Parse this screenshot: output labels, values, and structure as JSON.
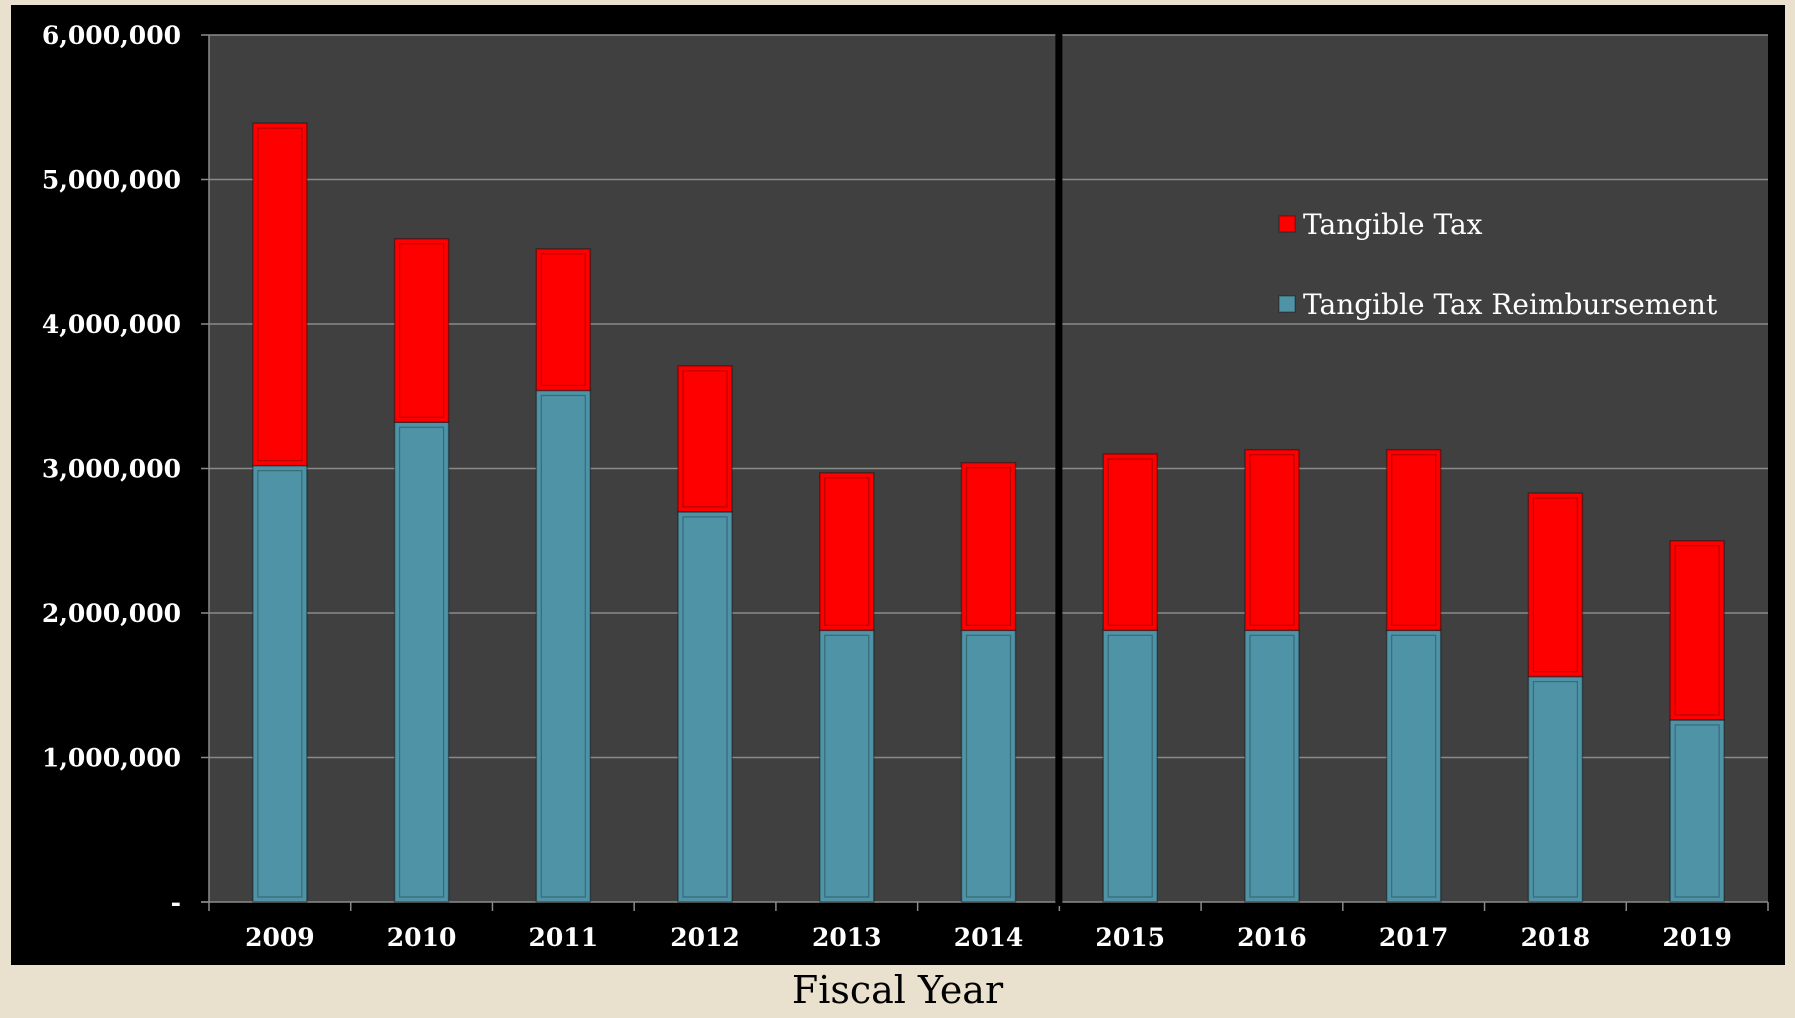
{
  "chart_data": {
    "type": "bar",
    "stacked": true,
    "title": "",
    "xlabel": "Fiscal Year",
    "ylabel": "",
    "categories": [
      "2009",
      "2010",
      "2011",
      "2012",
      "2013",
      "2014",
      "2015",
      "2016",
      "2017",
      "2018",
      "2019"
    ],
    "series": [
      {
        "name": "Tangible Tax Reimbursement",
        "color": "#4e93a6",
        "values": [
          3020000,
          3320000,
          3540000,
          2700000,
          1880000,
          1880000,
          1880000,
          1880000,
          1880000,
          1560000,
          1260000
        ]
      },
      {
        "name": "Tangible Tax",
        "color": "#ff0000",
        "values": [
          2370000,
          1270000,
          980000,
          1010000,
          1090000,
          1160000,
          1220000,
          1250000,
          1250000,
          1270000,
          1240000
        ]
      }
    ],
    "ylim": [
      0,
      6000000
    ],
    "yticks": [
      0,
      1000000,
      2000000,
      3000000,
      4000000,
      5000000,
      6000000
    ],
    "ytick_labels": [
      "-",
      "1,000,000",
      "2,000,000",
      "3,000,000",
      "4,000,000",
      "5,000,000",
      "6,000,000"
    ],
    "grid": true,
    "legend": "upper right",
    "legend_order": [
      "Tangible Tax",
      "Tangible Tax Reimbursement"
    ],
    "divider_after_category": "2014",
    "colors": {
      "plot_background": "#404040",
      "frame": "#000000",
      "grid": "#8a8a8a",
      "page": "#e9e0cd"
    }
  }
}
